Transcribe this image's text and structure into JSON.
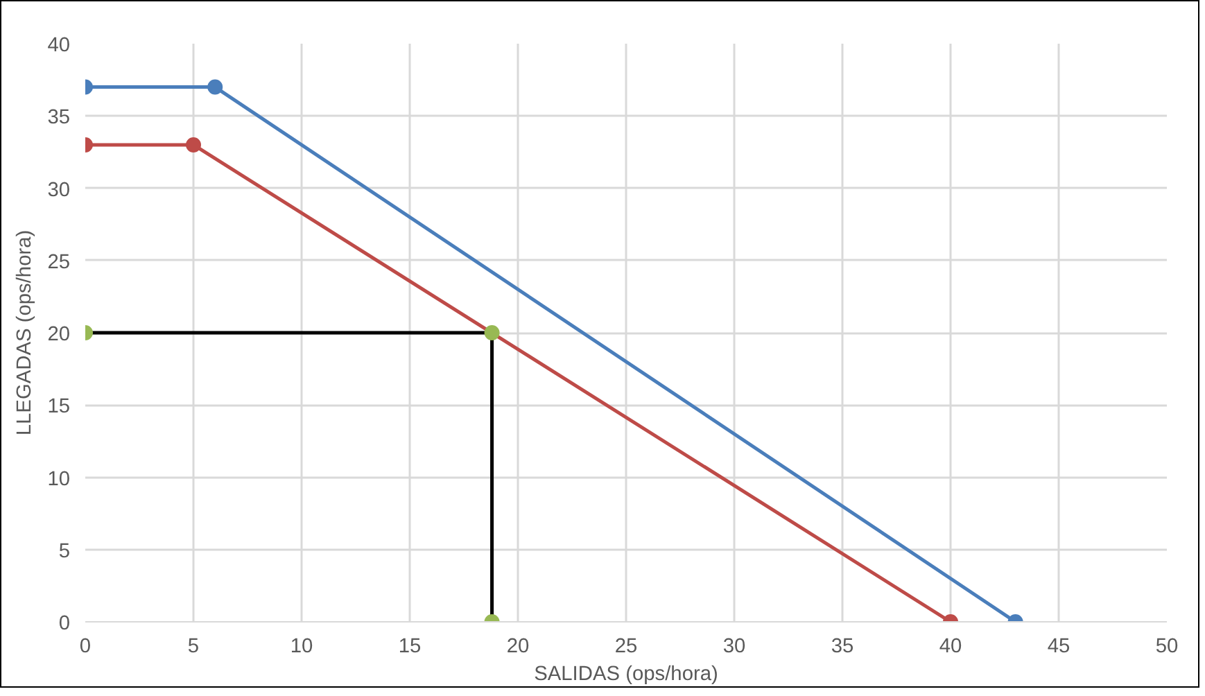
{
  "chart_data": {
    "type": "line",
    "xlabel": "SALIDAS (ops/hora)",
    "ylabel": "LLEGADAS (ops/hora)",
    "xlim": [
      0,
      50
    ],
    "xticks": [
      0,
      5,
      10,
      15,
      20,
      25,
      30,
      35,
      40,
      45,
      50
    ],
    "ylim": [
      0,
      40
    ],
    "yticks": [
      0,
      5,
      10,
      15,
      20,
      25,
      30,
      35,
      40
    ],
    "grid": true,
    "marker": "circle",
    "line_style": "solid",
    "series": [
      {
        "color": "#4a7ebb",
        "x": [
          0,
          6,
          43
        ],
        "values": [
          37,
          37,
          0
        ]
      },
      {
        "color": "#be4b48",
        "x": [
          0,
          5,
          40
        ],
        "values": [
          33,
          33,
          0
        ]
      },
      {
        "color": "#000000",
        "x": [
          0,
          18.8,
          18.8
        ],
        "values": [
          20,
          20,
          0
        ],
        "marker": "none"
      },
      {
        "type": "scatter",
        "color": "#98b954",
        "x": [
          0,
          18.8,
          18.8
        ],
        "values": [
          20,
          20,
          0
        ]
      }
    ]
  }
}
